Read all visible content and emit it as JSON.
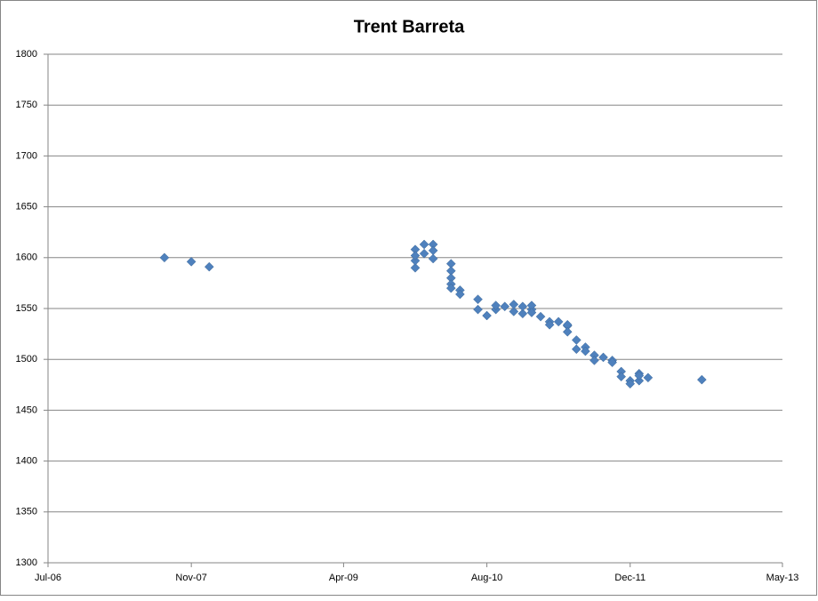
{
  "chart_data": {
    "type": "scatter",
    "title": "Trent Barreta",
    "series": [
      {
        "color": "#4f81bd",
        "x": [
          "2007-08",
          "2007-11",
          "2008-01",
          "2009-12",
          "2009-12",
          "2009-12",
          "2009-12",
          "2010-01",
          "2010-01",
          "2010-02",
          "2010-02",
          "2010-02",
          "2010-04",
          "2010-04",
          "2010-04",
          "2010-04",
          "2010-04",
          "2010-05",
          "2010-05",
          "2010-07",
          "2010-07",
          "2010-08",
          "2010-09",
          "2010-09",
          "2010-10",
          "2010-11",
          "2010-11",
          "2010-12",
          "2010-12",
          "2011-01",
          "2011-01",
          "2011-01",
          "2011-02",
          "2011-03",
          "2011-03",
          "2011-04",
          "2011-05",
          "2011-05",
          "2011-05",
          "2011-06",
          "2011-06",
          "2011-07",
          "2011-07",
          "2011-08",
          "2011-08",
          "2011-09",
          "2011-10",
          "2011-10",
          "2011-11",
          "2011-11",
          "2011-12",
          "2011-12",
          "2012-01",
          "2012-01",
          "2012-01",
          "2012-02",
          "2012-08"
        ],
        "values": [
          1600,
          1596,
          1591,
          1590,
          1597,
          1608,
          1602,
          1604,
          1613,
          1613,
          1607,
          1599,
          1594,
          1587,
          1580,
          1574,
          1570,
          1568,
          1564,
          1559,
          1549,
          1543,
          1549,
          1553,
          1552,
          1547,
          1554,
          1545,
          1552,
          1549,
          1553,
          1546,
          1542,
          1537,
          1534,
          1537,
          1533,
          1534,
          1527,
          1519,
          1510,
          1512,
          1508,
          1504,
          1499,
          1502,
          1499,
          1497,
          1488,
          1483,
          1479,
          1476,
          1479,
          1486,
          1484,
          1482,
          1480
        ]
      }
    ],
    "xlim": [
      "2006-07",
      "2013-05"
    ],
    "xticks": [
      {
        "value": "2006-07",
        "label": "Jul-06"
      },
      {
        "value": "2007-11",
        "label": "Nov-07"
      },
      {
        "value": "2009-04",
        "label": "Apr-09"
      },
      {
        "value": "2010-08",
        "label": "Aug-10"
      },
      {
        "value": "2011-12",
        "label": "Dec-11"
      },
      {
        "value": "2013-05",
        "label": "May-13"
      }
    ],
    "ylim": [
      1300,
      1800
    ],
    "yticks": [
      1300,
      1350,
      1400,
      1450,
      1500,
      1550,
      1600,
      1650,
      1700,
      1750,
      1800
    ],
    "grid": true
  }
}
